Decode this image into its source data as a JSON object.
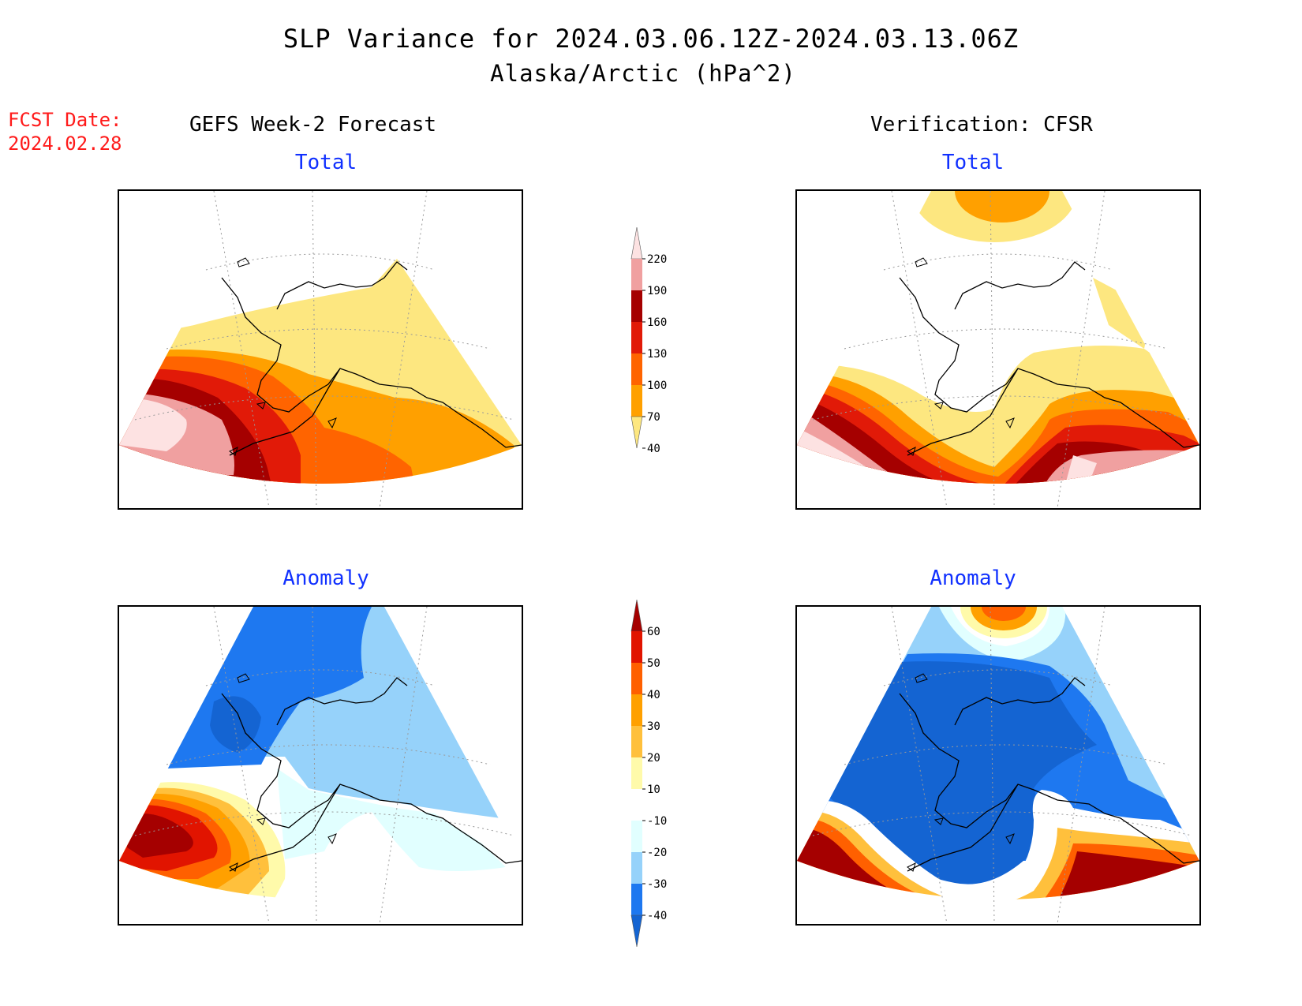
{
  "title": "SLP Variance for 2024.03.06.12Z-2024.03.13.06Z",
  "subtitle": "Alaska/Arctic (hPa^2)",
  "fcst_label": "FCST Date:",
  "fcst_date": "2024.02.28",
  "left_heading": "GEFS Week-2 Forecast",
  "right_heading": "Verification: CFSR",
  "panels": {
    "forecast_total": "Total",
    "verification_total": "Total",
    "forecast_anomaly": "Anomaly",
    "verification_anomaly": "Anomaly"
  },
  "colors": {
    "total": {
      "40_70": "#fde780",
      "70_100": "#ffa000",
      "100_130": "#ff6400",
      "130_160": "#e11a08",
      "160_190": "#a50000",
      "190_220": "#f0a0a0",
      "220_plus": "#fde2e2"
    },
    "anomaly": {
      "lt_-40": "#1464d2",
      "-40_-30": "#1e78f0",
      "-30_-20": "#96d2fa",
      "-20_-10": "#e1ffff",
      "-10_10": "#ffffff",
      "10_20": "#fffaaa",
      "20_30": "#ffc03c",
      "30_40": "#ffa000",
      "40_50": "#ff6000",
      "50_60": "#e11400",
      "gt_60": "#a50000"
    }
  },
  "colorbar_total": {
    "labels": [
      "220",
      "190",
      "160",
      "130",
      "100",
      "70",
      "40"
    ],
    "colors": [
      "#fde2e2",
      "#f0a0a0",
      "#a50000",
      "#e11a08",
      "#ff6400",
      "#ffa000",
      "#fde780"
    ]
  },
  "colorbar_anomaly": {
    "labels": [
      "60",
      "50",
      "40",
      "30",
      "20",
      "10",
      "-10",
      "-20",
      "-30",
      "-40"
    ],
    "colors": [
      "#a50000",
      "#e11400",
      "#ff6000",
      "#ffa000",
      "#ffc03c",
      "#fffaaa",
      "#ffffff",
      "#e1ffff",
      "#96d2fa",
      "#1e78f0",
      "#1464d2"
    ]
  }
}
